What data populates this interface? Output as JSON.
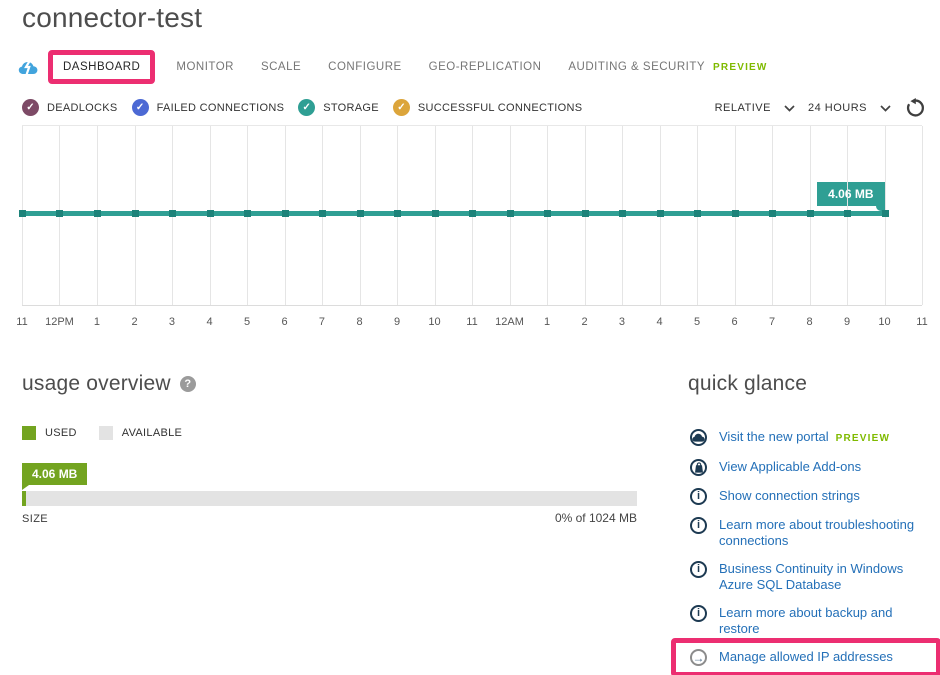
{
  "page": {
    "title": "connector-test"
  },
  "annotations": {
    "highlight_color": "#ec2e71"
  },
  "tabs": {
    "items": [
      {
        "label": "DASHBOARD",
        "active": true,
        "highlighted": true
      },
      {
        "label": "MONITOR"
      },
      {
        "label": "SCALE"
      },
      {
        "label": "CONFIGURE"
      },
      {
        "label": "GEO-REPLICATION"
      },
      {
        "label": "AUDITING & SECURITY",
        "badge": "PREVIEW"
      }
    ],
    "icon": "cloud-lightning-icon"
  },
  "metrics": {
    "items": [
      {
        "label": "DEADLOCKS",
        "color": "#7d4a66",
        "checked": true
      },
      {
        "label": "FAILED CONNECTIONS",
        "color": "#4c69d4",
        "checked": true
      },
      {
        "label": "STORAGE",
        "color": "#2f9f94",
        "checked": true
      },
      {
        "label": "SUCCESSFUL CONNECTIONS",
        "color": "#dca53b",
        "checked": true
      }
    ],
    "check_glyph": "✓"
  },
  "controls": {
    "relative_label": "RELATIVE",
    "duration_label": "24 HOURS",
    "refresh_icon": "refresh-icon"
  },
  "chart_data": {
    "type": "line",
    "x_labels": [
      "11",
      "12PM",
      "1",
      "2",
      "3",
      "4",
      "5",
      "6",
      "7",
      "8",
      "9",
      "10",
      "11",
      "12AM",
      "1",
      "2",
      "3",
      "4",
      "5",
      "6",
      "7",
      "8",
      "9",
      "10",
      "11"
    ],
    "series": [
      {
        "name": "STORAGE",
        "color": "#2f9f94",
        "dot_color": "#1d837a",
        "constant_value_mb": 4.06,
        "end_tick_index": 23
      }
    ],
    "annotation": "4.06 MB",
    "line_y_fraction": 0.47,
    "grid": "vertical-only",
    "mode": "RELATIVE",
    "time_range": "24 HOURS"
  },
  "usage": {
    "title": "usage overview",
    "help_glyph": "?",
    "legend": [
      {
        "label": "USED",
        "color": "#73a420"
      },
      {
        "label": "AVAILABLE",
        "color": "#e3e3e3"
      }
    ],
    "badge": "4.06 MB",
    "badge_color": "#73a420",
    "used_fraction_display": 0.007,
    "size_label": "SIZE",
    "size_value": "0% of 1024 MB"
  },
  "quick_glance": {
    "title": "quick glance",
    "links": [
      {
        "label": "Visit the new portal",
        "icon": "cloud",
        "badge": "PREVIEW"
      },
      {
        "label": "View Applicable Add-ons",
        "icon": "bag"
      },
      {
        "label": "Show connection strings",
        "icon": "info"
      },
      {
        "label": "Learn more about troubleshooting connections",
        "icon": "info"
      },
      {
        "label": "Business Continuity in Windows Azure SQL Database",
        "icon": "info"
      },
      {
        "label": "Learn more about backup and restore",
        "icon": "info"
      },
      {
        "label": "Manage allowed IP addresses",
        "icon": "arrow",
        "highlighted": true
      }
    ],
    "info_glyph": "i",
    "arrow_glyph": "→"
  }
}
